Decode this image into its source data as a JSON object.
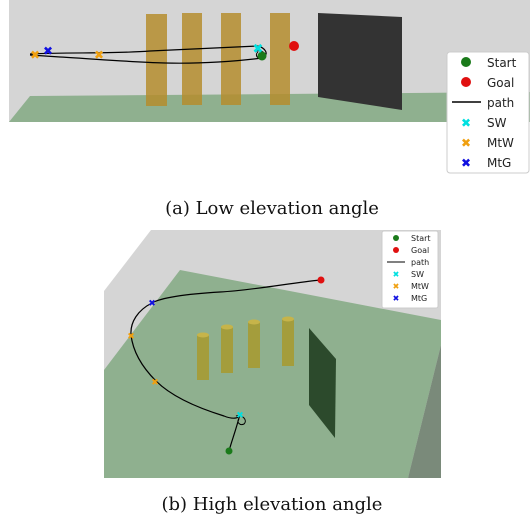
{
  "figure": {
    "caption_a": "(a) Low elevation angle",
    "caption_b": "(b) High elevation angle"
  },
  "legend": [
    {
      "label": "Start",
      "color": "#1a7a1a",
      "symbol": "circle"
    },
    {
      "label": "Goal",
      "color": "#e01010",
      "symbol": "circle"
    },
    {
      "label": "path",
      "color": "#000000",
      "symbol": "line"
    },
    {
      "label": "SW",
      "color": "#00e0e0",
      "symbol": "x"
    },
    {
      "label": "MtW",
      "color": "#f0a010",
      "symbol": "x"
    },
    {
      "label": "MtG",
      "color": "#1010e0",
      "symbol": "x"
    }
  ],
  "colors": {
    "floor": "#8fb08f",
    "wall_gray": "#d4d4d4",
    "pillar": "#b58d2e",
    "obstacle_wall": "#333333"
  }
}
